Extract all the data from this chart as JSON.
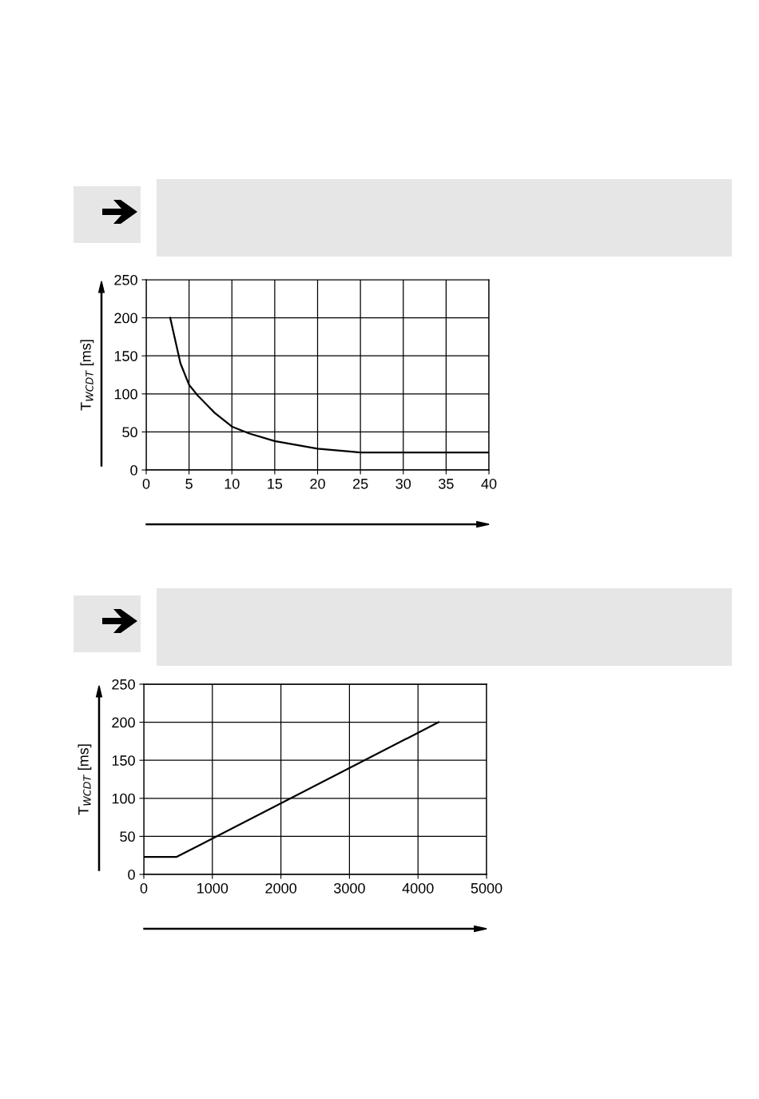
{
  "chart_data": [
    {
      "type": "line",
      "ylabel": "T$_{WCDT}$ [ms]",
      "xlim": [
        0,
        40
      ],
      "ylim": [
        0,
        250
      ],
      "xticks": [
        0,
        5,
        10,
        15,
        20,
        25,
        30,
        35,
        40
      ],
      "yticks": [
        0,
        50,
        100,
        150,
        200,
        250
      ],
      "grid": true,
      "marker": "none",
      "line_style": "solid",
      "series": [
        {
          "color": "#000000",
          "x": [
            2.8,
            3.5,
            4,
            5,
            6,
            8,
            10,
            12,
            15,
            20,
            24,
            25,
            40
          ],
          "values": [
            200,
            165,
            140,
            112,
            98,
            75,
            57,
            48,
            38,
            28,
            24,
            23,
            23
          ]
        }
      ]
    },
    {
      "type": "line",
      "ylabel": "T$_{WCDT}$ [ms]",
      "xlim": [
        0,
        5000
      ],
      "ylim": [
        0,
        250
      ],
      "xticks": [
        0,
        1000,
        2000,
        3000,
        4000,
        5000
      ],
      "yticks": [
        0,
        50,
        100,
        150,
        200,
        250
      ],
      "grid": true,
      "marker": "none",
      "line_style": "solid",
      "series": [
        {
          "color": "#000000",
          "x": [
            0,
            480,
            4300
          ],
          "values": [
            23,
            23,
            200
          ]
        }
      ]
    }
  ]
}
